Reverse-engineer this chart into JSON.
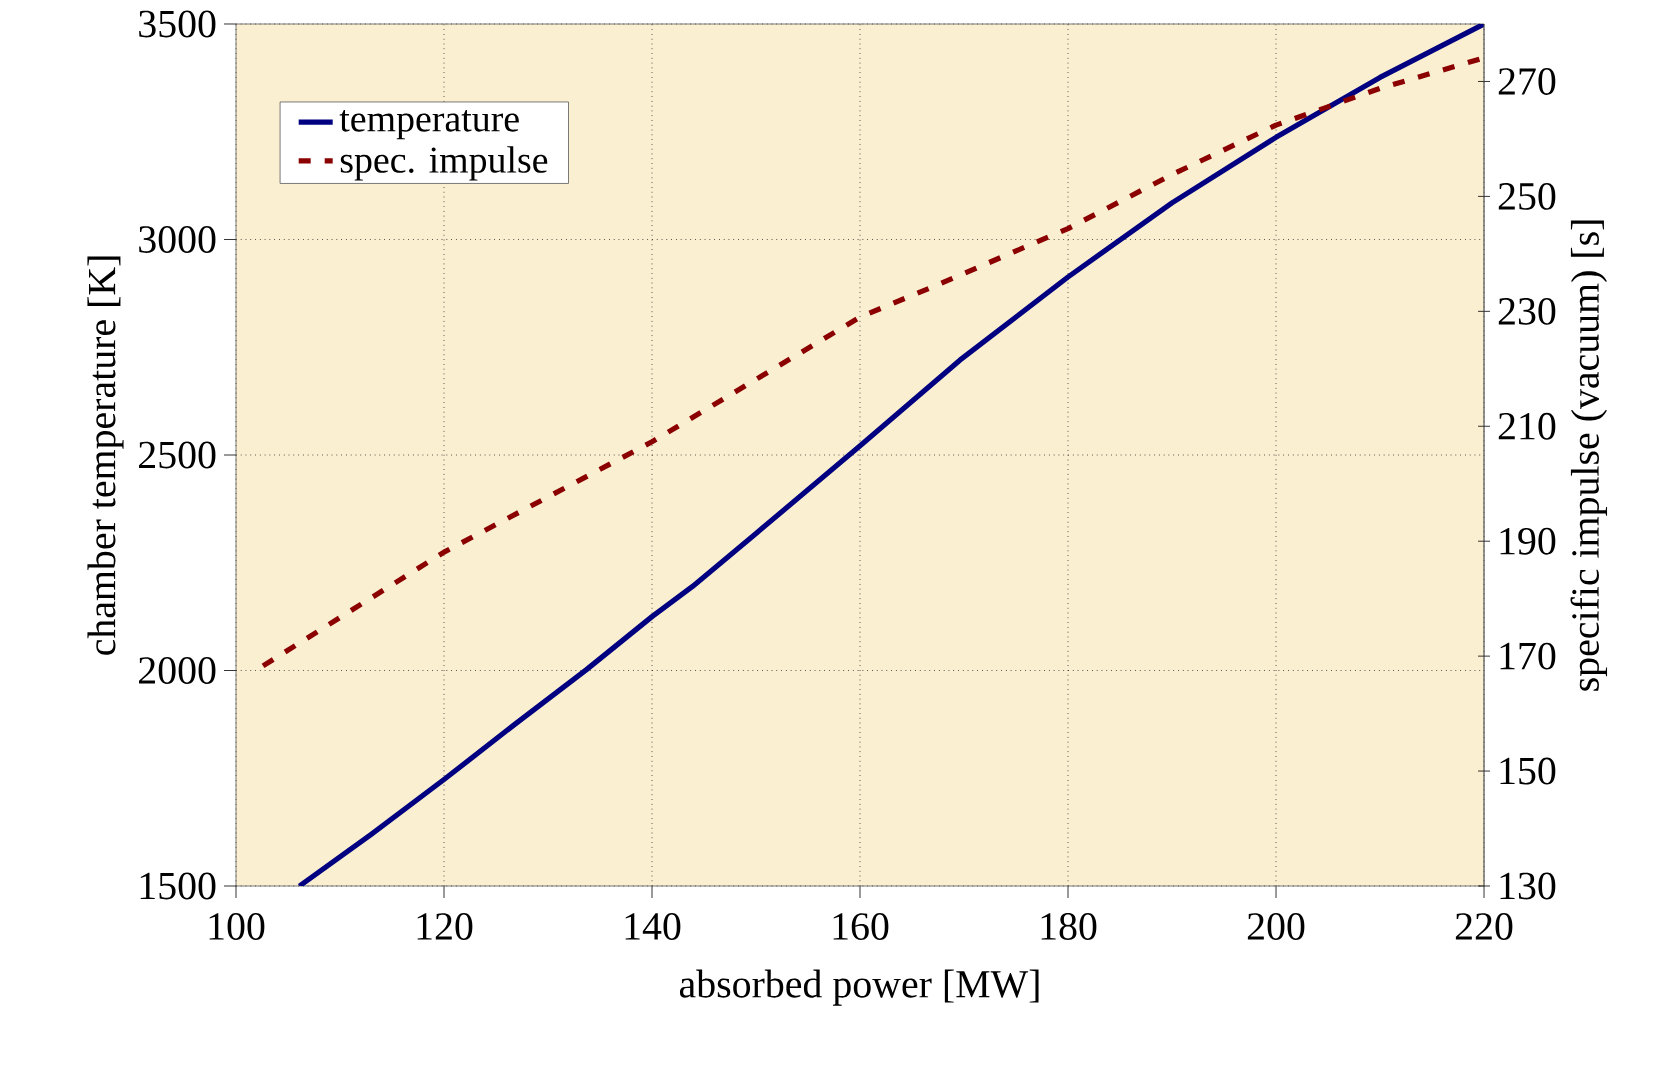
{
  "chart_data": {
    "type": "line",
    "xlabel": "absorbed power [MW]",
    "ylabel": "chamber temperature [K]",
    "y2label": "specific impulse (vacuum) [s]",
    "xlim": [
      100,
      220
    ],
    "xticks": [
      100,
      120,
      140,
      160,
      180,
      200,
      220
    ],
    "ylim": [
      1500,
      3500
    ],
    "yticks": [
      1500,
      2000,
      2500,
      3000,
      3500
    ],
    "y2lim": [
      130,
      280
    ],
    "y2ticks": [
      130,
      150,
      170,
      190,
      210,
      230,
      250,
      270
    ],
    "grid": true,
    "legend": "top left",
    "marker": "none",
    "series": [
      {
        "name": "temperature",
        "color": "#000080",
        "line_style": "solid",
        "x": [
          106.1,
          113,
          120,
          126.8,
          133.7,
          140,
          143.9,
          150,
          159.9,
          169.6,
          180,
          190,
          200,
          210,
          220
        ],
        "values": [
          1500,
          1620,
          1747,
          1875,
          2002,
          2125,
          2195,
          2318,
          2519,
          2720,
          2913,
          3085,
          3237,
          3376,
          3500
        ]
      },
      {
        "name": "spec. impulse",
        "color": "#8b0000",
        "line_style": "dashed",
        "axis": "y2",
        "x": [
          102.6,
          120,
          140,
          160,
          167.3,
          180,
          190,
          200,
          210,
          220
        ],
        "values": [
          168.3,
          188.1,
          207.3,
          229.0,
          234.5,
          244.4,
          253.8,
          262.4,
          268.8,
          274.1
        ]
      }
    ]
  }
}
